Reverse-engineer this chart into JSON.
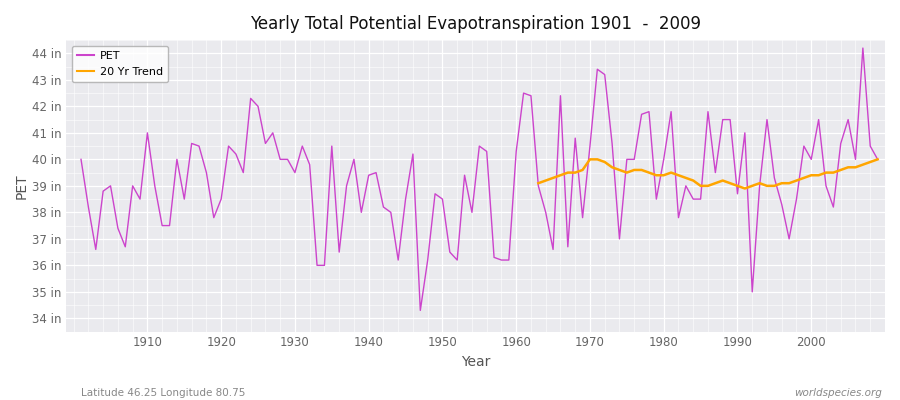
{
  "title": "Yearly Total Potential Evapotranspiration 1901  -  2009",
  "xlabel": "Year",
  "ylabel": "PET",
  "footnote_left": "Latitude 46.25 Longitude 80.75",
  "footnote_right": "worldspecies.org",
  "pet_color": "#CC44CC",
  "trend_color": "#FFA500",
  "fig_bg_color": "#FFFFFF",
  "plot_bg_color": "#EAEAEE",
  "ylim": [
    33.5,
    44.5
  ],
  "yticks": [
    34,
    35,
    36,
    37,
    38,
    39,
    40,
    41,
    42,
    43,
    44
  ],
  "xlim": [
    1899,
    2010
  ],
  "years": [
    1901,
    1902,
    1903,
    1904,
    1905,
    1906,
    1907,
    1908,
    1909,
    1910,
    1911,
    1912,
    1913,
    1914,
    1915,
    1916,
    1917,
    1918,
    1919,
    1920,
    1921,
    1922,
    1923,
    1924,
    1925,
    1926,
    1927,
    1928,
    1929,
    1930,
    1931,
    1932,
    1933,
    1934,
    1935,
    1936,
    1937,
    1938,
    1939,
    1940,
    1941,
    1942,
    1943,
    1944,
    1945,
    1946,
    1947,
    1948,
    1949,
    1950,
    1951,
    1952,
    1953,
    1954,
    1955,
    1956,
    1957,
    1958,
    1959,
    1960,
    1961,
    1962,
    1963,
    1964,
    1965,
    1966,
    1967,
    1968,
    1969,
    1970,
    1971,
    1972,
    1973,
    1974,
    1975,
    1976,
    1977,
    1978,
    1979,
    1980,
    1981,
    1982,
    1983,
    1984,
    1985,
    1986,
    1987,
    1988,
    1989,
    1990,
    1991,
    1992,
    1993,
    1994,
    1995,
    1996,
    1997,
    1998,
    1999,
    2000,
    2001,
    2002,
    2003,
    2004,
    2005,
    2006,
    2007,
    2008,
    2009
  ],
  "pet_values": [
    40.0,
    38.2,
    36.6,
    38.8,
    39.0,
    37.4,
    36.7,
    39.0,
    38.5,
    41.0,
    39.0,
    37.5,
    37.5,
    40.0,
    38.5,
    40.6,
    40.5,
    39.5,
    37.8,
    38.5,
    40.5,
    40.2,
    39.5,
    42.3,
    42.0,
    40.6,
    41.0,
    40.0,
    40.0,
    39.5,
    40.5,
    39.8,
    36.0,
    36.0,
    40.5,
    36.5,
    39.0,
    40.0,
    38.0,
    39.4,
    39.5,
    38.2,
    38.0,
    36.2,
    38.5,
    40.2,
    34.3,
    36.2,
    38.7,
    38.5,
    36.5,
    36.2,
    39.4,
    38.0,
    40.5,
    40.3,
    36.3,
    36.2,
    36.2,
    40.3,
    42.5,
    42.4,
    39.0,
    38.0,
    36.6,
    42.4,
    36.7,
    40.8,
    37.8,
    40.5,
    43.4,
    43.2,
    40.6,
    37.0,
    40.0,
    40.0,
    41.7,
    41.8,
    38.5,
    40.0,
    41.8,
    37.8,
    39.0,
    38.5,
    38.5,
    41.8,
    39.5,
    41.5,
    41.5,
    38.7,
    41.0,
    35.0,
    39.0,
    41.5,
    39.3,
    38.3,
    37.0,
    38.5,
    40.5,
    40.0,
    41.5,
    39.0,
    38.2,
    40.6,
    41.5,
    40.0,
    44.2,
    40.5,
    40.0
  ],
  "trend_years": [
    1963,
    1964,
    1965,
    1966,
    1967,
    1968,
    1969,
    1970,
    1971,
    1972,
    1973,
    1974,
    1975,
    1976,
    1977,
    1978,
    1979,
    1980,
    1981,
    1982,
    1983,
    1984,
    1985,
    1986,
    1987,
    1988,
    1989,
    1990,
    1991,
    1992,
    1993,
    1994,
    1995,
    1996,
    1997,
    1998,
    1999,
    2000,
    2001,
    2002,
    2003,
    2004,
    2005,
    2006,
    2007,
    2008,
    2009
  ],
  "trend_values": [
    39.1,
    39.2,
    39.3,
    39.4,
    39.5,
    39.5,
    39.6,
    40.0,
    40.0,
    39.9,
    39.7,
    39.6,
    39.5,
    39.6,
    39.6,
    39.5,
    39.4,
    39.4,
    39.5,
    39.4,
    39.3,
    39.2,
    39.0,
    39.0,
    39.1,
    39.2,
    39.1,
    39.0,
    38.9,
    39.0,
    39.1,
    39.0,
    39.0,
    39.1,
    39.1,
    39.2,
    39.3,
    39.4,
    39.4,
    39.5,
    39.5,
    39.6,
    39.7,
    39.7,
    39.8,
    39.9,
    40.0
  ]
}
